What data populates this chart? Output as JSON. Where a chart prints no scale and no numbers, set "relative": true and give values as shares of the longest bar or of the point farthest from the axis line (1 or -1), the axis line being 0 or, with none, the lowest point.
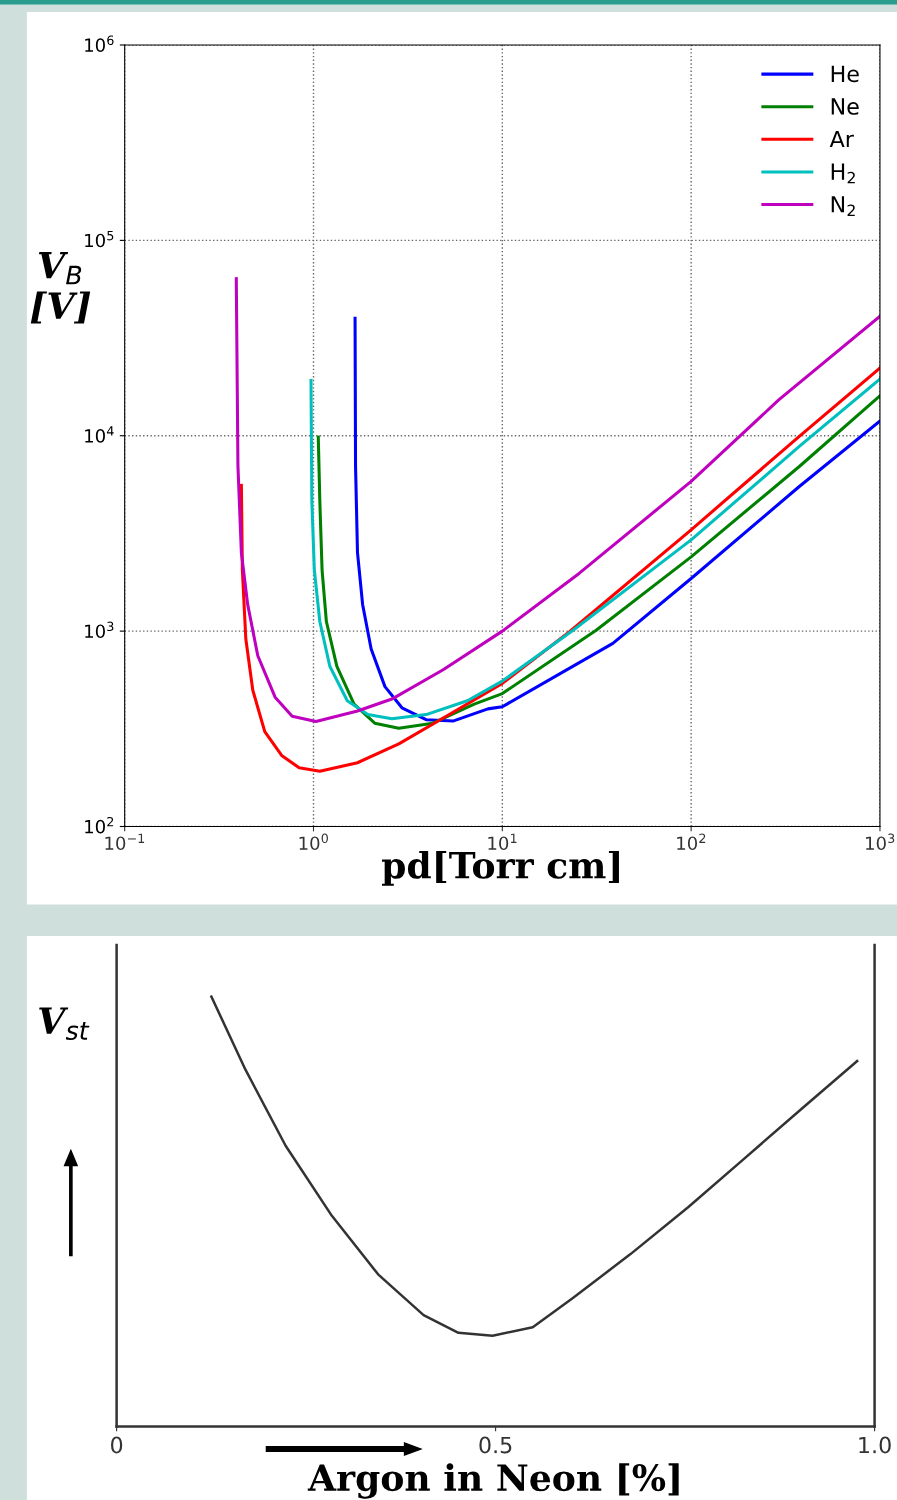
{
  "chart_data": [
    {
      "type": "line",
      "xlabel": "pd[Torr cm]",
      "ylabel": "V$_{B}$\n[V]",
      "log": "xy",
      "grid": true,
      "legend": "top right",
      "line_style": "solid",
      "xlim": [
        0.1,
        1000
      ],
      "ylim": [
        100,
        1000000
      ],
      "xticks": [
        {
          "value": 0.1,
          "label": "10$^{−1}$"
        },
        {
          "value": 1,
          "label": "10$^{0}$"
        },
        {
          "value": 10,
          "label": "10$^{1}$"
        },
        {
          "value": 100,
          "label": "10$^{2}$"
        },
        {
          "value": 1000,
          "label": "10$^{3}$"
        }
      ],
      "yticks": [
        {
          "value": 100,
          "label": "10$^{2}$"
        },
        {
          "value": 1000,
          "label": "10$^{3}$"
        },
        {
          "value": 10000,
          "label": "10$^{4}$"
        },
        {
          "value": 100000,
          "label": "10$^{5}$"
        },
        {
          "value": 1000000,
          "label": "10$^{6}$"
        }
      ],
      "series": [
        {
          "name": "He",
          "color": "#0000ff",
          "x": [
            1.66,
            1.67,
            1.71,
            1.82,
            2.02,
            2.39,
            2.94,
            3.95,
            5.52,
            8.39,
            10,
            38.5,
            100,
            374,
            1000
          ],
          "values": [
            39900,
            6960,
            2520,
            1370,
            810,
            520,
            405,
            352,
            347,
            400,
            410,
            865,
            1860,
            5500,
            11900
          ]
        },
        {
          "name": "Ne",
          "color": "#008000",
          "x": [
            1.06,
            1.08,
            1.11,
            1.17,
            1.33,
            1.64,
            2.11,
            2.83,
            4.29,
            7.1,
            10,
            31.4,
            100,
            374,
            1000
          ],
          "values": [
            9840,
            4640,
            2060,
            1120,
            660,
            423,
            338,
            318,
            338,
            423,
            479,
            1010,
            2400,
            6960,
            16000
          ]
        },
        {
          "name": "Ar",
          "color": "#ff0000",
          "x": [
            0.415,
            0.42,
            0.438,
            0.477,
            0.552,
            0.681,
            0.839,
            1.08,
            1.71,
            2.83,
            4.87,
            10,
            22.7,
            100,
            374,
            1000
          ],
          "values": [
            5570,
            2060,
            914,
            498,
            306,
            230,
            200,
            192,
            212,
            265,
            359,
            540,
            993,
            3300,
            9930,
            22200
          ]
        },
        {
          "name": "H$_{2}$",
          "color": "#00bfbf",
          "x": [
            0.97,
            0.98,
            1.01,
            1.08,
            1.22,
            1.51,
            1.94,
            2.6,
            3.95,
            6.53,
            10,
            23.7,
            100,
            374,
            1000
          ],
          "values": [
            19200,
            4640,
            2060,
            1120,
            661,
            440,
            374,
            356,
            374,
            440,
            555,
            1010,
            2930,
            8820,
            19500
          ]
        },
        {
          "name": "N$_{2}$",
          "color": "#bf00bf",
          "x": [
            0.39,
            0.398,
            0.415,
            0.448,
            0.507,
            0.626,
            0.771,
            1.03,
            1.71,
            2.6,
            4.86,
            10,
            25.6,
            100,
            292,
            1000
          ],
          "values": [
            63700,
            6970,
            2520,
            1370,
            748,
            459,
            367,
            345,
            390,
            449,
            634,
            1000,
            1980,
            5840,
            15300,
            40900
          ]
        }
      ]
    },
    {
      "type": "line",
      "xlabel": "Argon in Neon [%]",
      "ylabel": "V$_{st}$",
      "relative": true,
      "tick_labels": "x",
      "xlim": [
        0,
        1.0
      ],
      "xticks": [
        0,
        {
          "value": 0.5,
          "label": "0.5"
        },
        {
          "value": 1.0,
          "label": "1.0"
        }
      ],
      "series": [
        {
          "color": "#333333",
          "x": [
            0.125,
            0.17,
            0.223,
            0.284,
            0.345,
            0.405,
            0.451,
            0.496,
            0.549,
            0.602,
            0.678,
            0.754,
            0.83,
            0.905,
            0.977
          ],
          "values": [
            1.0,
            0.83,
            0.653,
            0.49,
            0.354,
            0.259,
            0.218,
            0.211,
            0.231,
            0.299,
            0.401,
            0.51,
            0.626,
            0.741,
            0.85
          ]
        }
      ]
    }
  ]
}
